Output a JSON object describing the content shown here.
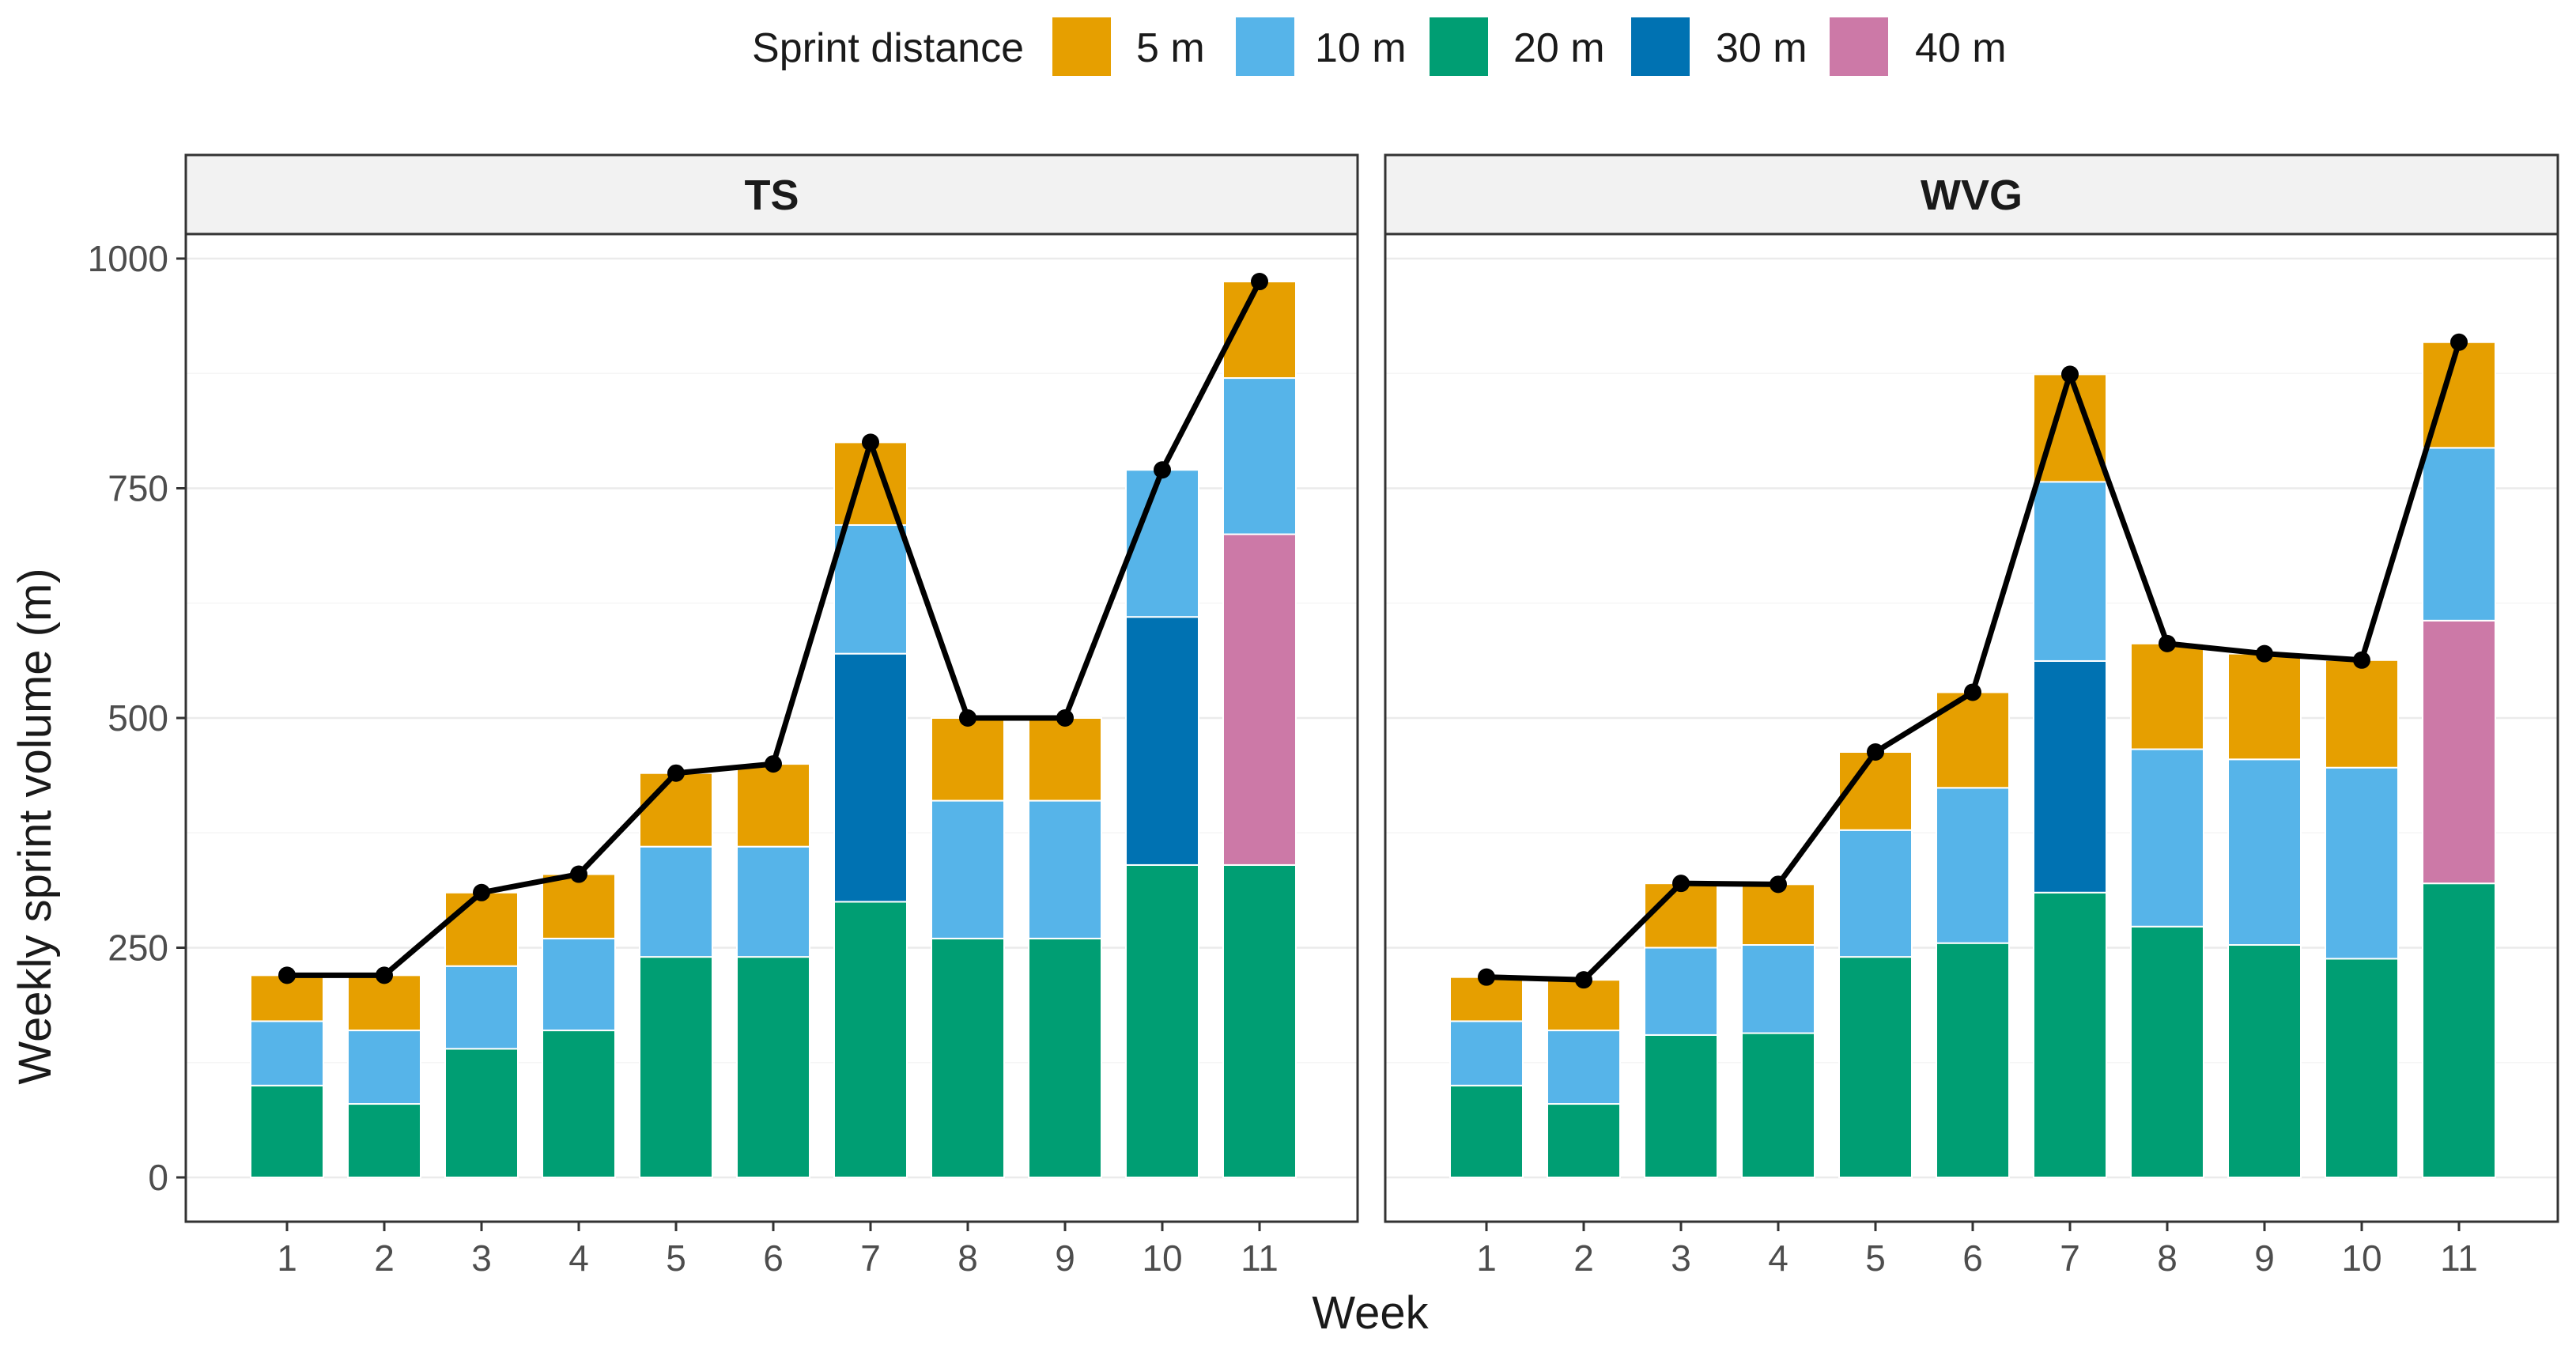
{
  "chart_data": {
    "type": "bar",
    "stacked": true,
    "xlabel": "Week",
    "ylabel": "Weekly sprint volume (m)",
    "ylim": [
      0,
      1000
    ],
    "yticks": [
      0,
      250,
      500,
      750,
      1000
    ],
    "categories": [
      "1",
      "2",
      "3",
      "4",
      "5",
      "6",
      "7",
      "8",
      "9",
      "10",
      "11"
    ],
    "legend": {
      "title": "Sprint distance",
      "position": "top",
      "entries": [
        {
          "key": "5m",
          "label": "5 m",
          "color": "#E69F00"
        },
        {
          "key": "10m",
          "label": "10 m",
          "color": "#56B4E9"
        },
        {
          "key": "20m",
          "label": "20 m",
          "color": "#009E73"
        },
        {
          "key": "30m",
          "label": "30 m",
          "color": "#0072B2"
        },
        {
          "key": "40m",
          "label": "40 m",
          "color": "#CC79A7"
        }
      ]
    },
    "line_color": "#000000",
    "panels": [
      {
        "name": "TS",
        "series": [
          {
            "key": "20m",
            "name": "20 m",
            "values": [
              100,
              80,
              140,
              160,
              240,
              240,
              300,
              260,
              260,
              340,
              340
            ]
          },
          {
            "key": "30m",
            "name": "30 m",
            "values": [
              0,
              0,
              0,
              0,
              0,
              0,
              270,
              0,
              0,
              270,
              0
            ]
          },
          {
            "key": "40m",
            "name": "40 m",
            "values": [
              0,
              0,
              0,
              0,
              0,
              0,
              0,
              0,
              0,
              0,
              360
            ]
          },
          {
            "key": "10m",
            "name": "10 m",
            "values": [
              70,
              80,
              90,
              100,
              120,
              120,
              140,
              150,
              150,
              160,
              170
            ]
          },
          {
            "key": "5m",
            "name": "5 m",
            "values": [
              50,
              60,
              80,
              70,
              80,
              90,
              90,
              90,
              90,
              0,
              105
            ]
          }
        ],
        "totals": [
          220,
          220,
          310,
          330,
          440,
          450,
          800,
          500,
          500,
          770,
          975
        ]
      },
      {
        "name": "WVG",
        "series": [
          {
            "key": "20m",
            "name": "20 m",
            "values": [
              100,
              80,
              155,
              157,
              240,
              255,
              310,
              273,
              253,
              238,
              320
            ]
          },
          {
            "key": "30m",
            "name": "30 m",
            "values": [
              0,
              0,
              0,
              0,
              0,
              0,
              252,
              0,
              0,
              0,
              0
            ]
          },
          {
            "key": "40m",
            "name": "40 m",
            "values": [
              0,
              0,
              0,
              0,
              0,
              0,
              0,
              0,
              0,
              0,
              286
            ]
          },
          {
            "key": "10m",
            "name": "10 m",
            "values": [
              70,
              80,
              95,
              96,
              138,
              169,
              195,
              193,
              202,
              208,
              188
            ]
          },
          {
            "key": "5m",
            "name": "5 m",
            "values": [
              48,
              55,
              70,
              66,
              85,
              104,
              117,
              115,
              115,
              117,
              115
            ]
          }
        ],
        "totals": [
          218,
          215,
          320,
          319,
          463,
          528,
          874,
          581,
          570,
          563,
          909
        ]
      }
    ]
  }
}
